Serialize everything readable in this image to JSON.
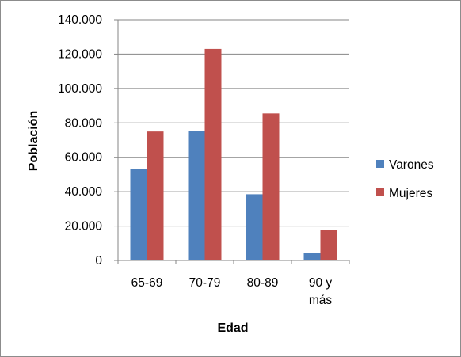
{
  "chart_data": {
    "type": "bar",
    "title": "",
    "xlabel": "Edad",
    "ylabel": "Población",
    "categories": [
      [
        "65-69"
      ],
      [
        "70-79"
      ],
      [
        "80-89"
      ],
      [
        "90 y",
        "más"
      ]
    ],
    "series": [
      {
        "name": "Varones",
        "color": "#4f81bd",
        "values": [
          53000,
          75500,
          38500,
          4500
        ]
      },
      {
        "name": "Mujeres",
        "color": "#c0504d",
        "values": [
          75000,
          123000,
          85500,
          17500
        ]
      }
    ],
    "ylim": [
      0,
      140000
    ],
    "yticks": [
      0,
      20000,
      40000,
      60000,
      80000,
      100000,
      120000,
      140000
    ],
    "ytick_labels": [
      "0",
      "20.000",
      "40.000",
      "60.000",
      "80.000",
      "100.000",
      "120.000",
      "140.000"
    ],
    "grid": true,
    "legend_position": "right"
  }
}
